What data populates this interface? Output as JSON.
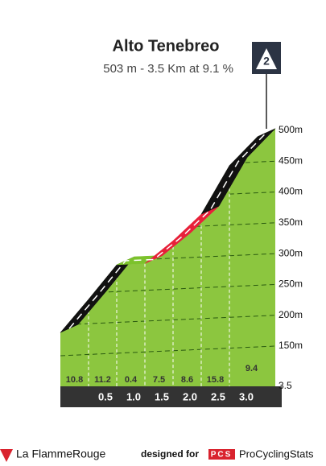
{
  "chart_data": {
    "type": "climb-profile",
    "title": "Alto Tenebreo",
    "subtitle": "503 m - 3.5 Km at 9.1 %",
    "category": "2",
    "x": [
      0,
      0.5,
      1.0,
      1.5,
      2.0,
      2.5,
      3.0,
      3.5
    ],
    "values": [
      185,
      239,
      295,
      297,
      334,
      377,
      456,
      503
    ],
    "gradients": [
      10.8,
      11.2,
      0.4,
      7.5,
      8.6,
      15.8,
      9.4
    ],
    "segment_colors": [
      "#111111",
      "#111111",
      "#7cc22c",
      "#e8203a",
      "#e8203a",
      "#111111",
      "#111111"
    ],
    "face_color": "#8cc63f",
    "xlim": [
      0,
      3.5
    ],
    "xticks": [
      0.5,
      {
        "value": 1.0,
        "label": "1.0"
      },
      1.5,
      {
        "value": 2.0,
        "label": "2.0"
      },
      2.5,
      {
        "value": 3.0,
        "label": "3.0"
      },
      3.5
    ],
    "ylim": [
      150,
      500
    ],
    "yticks": [
      {
        "value": 150,
        "label": "150m"
      },
      {
        "value": 200,
        "label": "200m"
      },
      {
        "value": 250,
        "label": "250m"
      },
      {
        "value": 300,
        "label": "300m"
      },
      {
        "value": 350,
        "label": "350m"
      },
      {
        "value": 400,
        "label": "400m"
      },
      {
        "value": 450,
        "label": "450m"
      },
      {
        "value": 500,
        "label": "500m"
      }
    ],
    "grid": true,
    "footer": {
      "brand": "La FlammeRouge",
      "designed_for": "designed for",
      "pcs": "PCS",
      "pcs_name": "ProCyclingStats"
    }
  }
}
